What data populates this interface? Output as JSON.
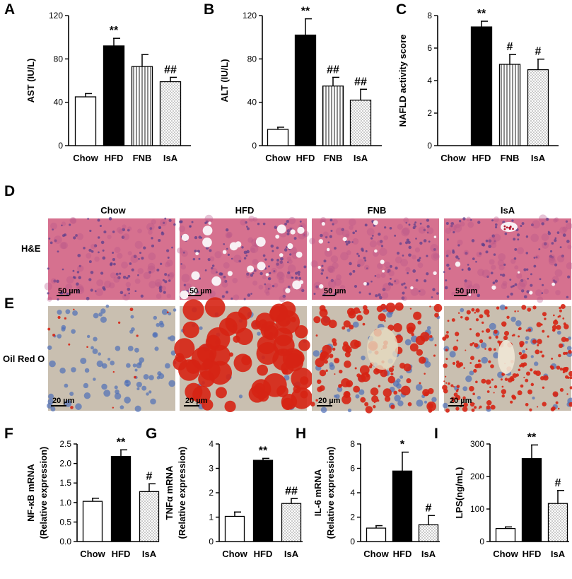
{
  "chart_data": [
    {
      "panel": "A",
      "type": "bar",
      "categories": [
        "Chow",
        "HFD",
        "FNB",
        "IsA"
      ],
      "values": [
        45,
        92,
        73,
        59
      ],
      "errors": [
        3,
        7,
        11,
        4
      ],
      "significance": [
        "",
        "**",
        "",
        "##"
      ],
      "fills": [
        "white",
        "black",
        "vertical",
        "dots"
      ],
      "ylabel": "AST (IU/L)",
      "ylim": [
        0,
        120
      ],
      "yticks": [
        "0",
        "40",
        "80",
        "120"
      ]
    },
    {
      "panel": "B",
      "type": "bar",
      "categories": [
        "Chow",
        "HFD",
        "FNB",
        "IsA"
      ],
      "values": [
        15,
        102,
        55,
        42
      ],
      "errors": [
        2,
        15,
        8,
        10
      ],
      "significance": [
        "",
        "**",
        "##",
        "##"
      ],
      "fills": [
        "white",
        "black",
        "vertical",
        "dots"
      ],
      "ylabel": "ALT (IU/L)",
      "ylim": [
        0,
        120
      ],
      "yticks": [
        "0",
        "40",
        "80",
        "120"
      ]
    },
    {
      "panel": "C",
      "type": "bar",
      "categories": [
        "Chow",
        "HFD",
        "FNB",
        "IsA"
      ],
      "values": [
        0,
        7.3,
        5.0,
        4.67
      ],
      "errors": [
        0,
        0.35,
        0.6,
        0.65
      ],
      "significance": [
        "",
        "**",
        "#",
        "#"
      ],
      "fills": [
        "white",
        "black",
        "vertical",
        "dots"
      ],
      "ylabel": "NAFLD activity score",
      "ylim": [
        0,
        8
      ],
      "yticks": [
        "0",
        "2",
        "4",
        "6",
        "8"
      ]
    },
    {
      "panel": "F",
      "type": "bar",
      "categories": [
        "Chow",
        "HFD",
        "IsA"
      ],
      "values": [
        1.03,
        2.18,
        1.28
      ],
      "errors": [
        0.08,
        0.17,
        0.2
      ],
      "significance": [
        "",
        "**",
        "#"
      ],
      "fills": [
        "white",
        "black",
        "dots"
      ],
      "ylabel": "NF-κB mRNA",
      "ylabel2": "(Relative expression)",
      "ylim": [
        0,
        2.5
      ],
      "yticks": [
        "0.0",
        "0.5",
        "1.0",
        "1.5",
        "2.0",
        "2.5"
      ]
    },
    {
      "panel": "G",
      "type": "bar",
      "categories": [
        "Chow",
        "HFD",
        "IsA"
      ],
      "values": [
        1.03,
        3.33,
        1.56
      ],
      "errors": [
        0.18,
        0.08,
        0.2
      ],
      "significance": [
        "",
        "**",
        "##"
      ],
      "fills": [
        "white",
        "black",
        "dots"
      ],
      "ylabel": "TNFα mRNA",
      "ylabel2": "(Relative expression)",
      "ylim": [
        0,
        4
      ],
      "yticks": [
        "0",
        "1",
        "2",
        "3",
        "4"
      ]
    },
    {
      "panel": "H",
      "type": "bar",
      "categories": [
        "Chow",
        "HFD",
        "IsA"
      ],
      "values": [
        1.1,
        5.78,
        1.38
      ],
      "errors": [
        0.2,
        1.55,
        0.75
      ],
      "significance": [
        "",
        "*",
        "#"
      ],
      "fills": [
        "white",
        "black",
        "dots"
      ],
      "ylabel": "IL-6 mRNA",
      "ylabel2": "(Relative expression)",
      "ylim": [
        0,
        8
      ],
      "yticks": [
        "0",
        "2",
        "4",
        "6",
        "8"
      ]
    },
    {
      "panel": "I",
      "type": "bar",
      "categories": [
        "Chow",
        "HFD",
        "IsA"
      ],
      "values": [
        40,
        255,
        117
      ],
      "errors": [
        5,
        42,
        40
      ],
      "significance": [
        "",
        "**",
        "#"
      ],
      "fills": [
        "white",
        "black",
        "dots"
      ],
      "ylabel": "LPS(ng/mL)",
      "ylim": [
        0,
        300
      ],
      "yticks": [
        "0",
        "100",
        "200",
        "300"
      ]
    }
  ],
  "histology": {
    "panel_d": "D",
    "panel_e": "E",
    "columns": [
      "Chow",
      "HFD",
      "FNB",
      "IsA"
    ],
    "he_label": "H&E",
    "oil_label": "Oil Red O",
    "he_scale": "50 µm",
    "oil_scale": "20 µm",
    "colors": {
      "he_bg": "#d6718f",
      "he_cell": "#b8568a",
      "he_nucleus": "#5c3f8c",
      "vacuole": "#f8f0f4",
      "oil_bg": "#c9bfb0",
      "oil_nucleus": "#4f6fb8",
      "lipid": "#d62414"
    }
  }
}
